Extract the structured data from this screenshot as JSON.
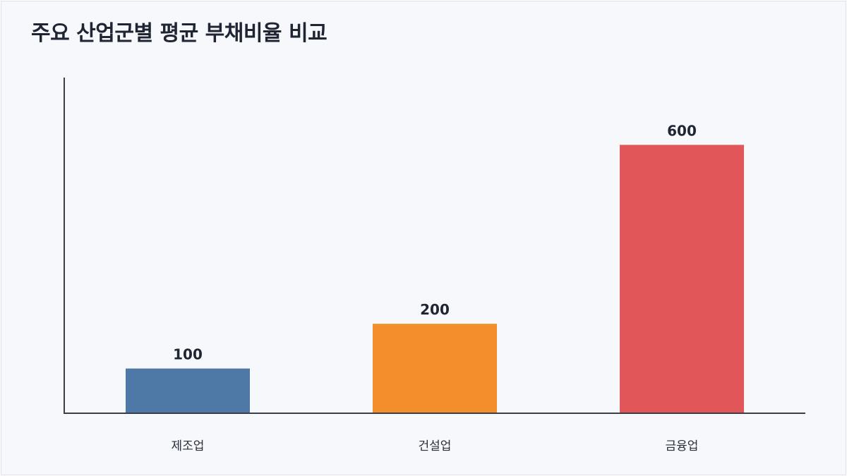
{
  "chart_data": {
    "type": "bar",
    "title": "주요 산업군별 평균 부채비율 비교",
    "categories": [
      "제조업",
      "건설업",
      "금융업"
    ],
    "values": [
      100,
      200,
      600
    ],
    "colors": [
      "#4e79a7",
      "#f28e2b",
      "#e15759"
    ],
    "xlabel": "",
    "ylabel": "",
    "ylim": [
      0,
      700
    ],
    "grid": false,
    "legend": "none"
  }
}
